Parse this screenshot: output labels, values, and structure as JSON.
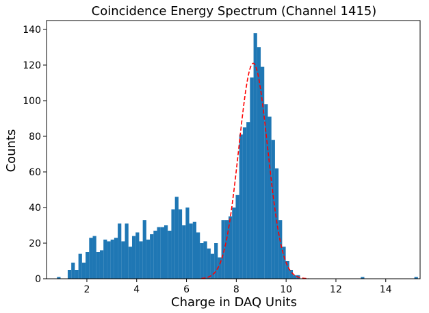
{
  "chart_data": {
    "type": "bar",
    "title": "Coincidence Energy Spectrum (Channel 1415)",
    "xlabel": "Charge in DAQ Units",
    "ylabel": "Counts",
    "xlim": [
      0.38,
      15.38
    ],
    "ylim": [
      0,
      145
    ],
    "xticks": [
      2,
      4,
      6,
      8,
      10,
      12,
      14
    ],
    "yticks": [
      0,
      20,
      40,
      60,
      80,
      100,
      120,
      140
    ],
    "grid": false,
    "bar_color": "#1f77b4",
    "fit_color": "#ff0000",
    "histogram": {
      "bin_start": 0.8,
      "bin_width": 0.1435,
      "counts": [
        1,
        0,
        0,
        5,
        9,
        5,
        14,
        9,
        15,
        23,
        24,
        15,
        16,
        22,
        21,
        22,
        23,
        31,
        21,
        31,
        18,
        24,
        26,
        21,
        33,
        22,
        25,
        27,
        29,
        29,
        30,
        27,
        39,
        46,
        39,
        30,
        40,
        31,
        32,
        26,
        20,
        21,
        17,
        14,
        20,
        12,
        33,
        33,
        35,
        40,
        47,
        81,
        85,
        88,
        113,
        138,
        130,
        119,
        98,
        91,
        78,
        62,
        33,
        18,
        10,
        5,
        2,
        2,
        0,
        0,
        0,
        0,
        0,
        0,
        0,
        0,
        0,
        0,
        0,
        0,
        0,
        0,
        0,
        0,
        0,
        1,
        0,
        0,
        0,
        0,
        0,
        0,
        0,
        0,
        0,
        0,
        0,
        0,
        0,
        0,
        1
      ]
    },
    "series": [
      {
        "type": "line",
        "style": "dashed",
        "gaussian": {
          "amplitude": 121,
          "mean": 8.68,
          "sigma": 0.58
        },
        "x_range": [
          6.6,
          10.9
        ]
      }
    ],
    "ticks_format": "integer"
  }
}
